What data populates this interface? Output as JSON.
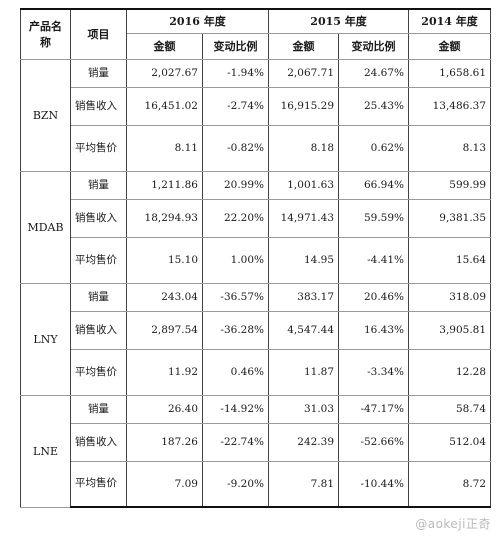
{
  "header": {
    "product": "产品名称",
    "item": "项目",
    "years": [
      "2016 年度",
      "2015 年度",
      "2014 年度"
    ],
    "amount": "金额",
    "ratio": "变动比例"
  },
  "groups": [
    {
      "product": "BZN",
      "rows": [
        {
          "item": "销量",
          "y2016": "2,027.67",
          "r2016": "-1.94%",
          "y2015": "2,067.71",
          "r2015": "24.67%",
          "y2014": "1,658.61"
        },
        {
          "item": "销售收入",
          "y2016": "16,451.02",
          "r2016": "-2.74%",
          "y2015": "16,915.29",
          "r2015": "25.43%",
          "y2014": "13,486.37"
        },
        {
          "item": "平均售价",
          "y2016": "8.11",
          "r2016": "-0.82%",
          "y2015": "8.18",
          "r2015": "0.62%",
          "y2014": "8.13"
        }
      ]
    },
    {
      "product": "MDAB",
      "rows": [
        {
          "item": "销量",
          "y2016": "1,211.86",
          "r2016": "20.99%",
          "y2015": "1,001.63",
          "r2015": "66.94%",
          "y2014": "599.99"
        },
        {
          "item": "销售收入",
          "y2016": "18,294.93",
          "r2016": "22.20%",
          "y2015": "14,971.43",
          "r2015": "59.59%",
          "y2014": "9,381.35"
        },
        {
          "item": "平均售价",
          "y2016": "15.10",
          "r2016": "1.00%",
          "y2015": "14.95",
          "r2015": "-4.41%",
          "y2014": "15.64"
        }
      ]
    },
    {
      "product": "LNY",
      "rows": [
        {
          "item": "销量",
          "y2016": "243.04",
          "r2016": "-36.57%",
          "y2015": "383.17",
          "r2015": "20.46%",
          "y2014": "318.09"
        },
        {
          "item": "销售收入",
          "y2016": "2,897.54",
          "r2016": "-36.28%",
          "y2015": "4,547.44",
          "r2015": "16.43%",
          "y2014": "3,905.81"
        },
        {
          "item": "平均售价",
          "y2016": "11.92",
          "r2016": "0.46%",
          "y2015": "11.87",
          "r2015": "-3.34%",
          "y2014": "12.28"
        }
      ]
    },
    {
      "product": "LNE",
      "rows": [
        {
          "item": "销量",
          "y2016": "26.40",
          "r2016": "-14.92%",
          "y2015": "31.03",
          "r2015": "-47.17%",
          "y2014": "58.74"
        },
        {
          "item": "销售收入",
          "y2016": "187.26",
          "r2016": "-22.74%",
          "y2015": "242.39",
          "r2015": "-52.66%",
          "y2014": "512.04"
        },
        {
          "item": "平均售价",
          "y2016": "7.09",
          "r2016": "-9.20%",
          "y2015": "7.81",
          "r2015": "-10.44%",
          "y2014": "8.72"
        }
      ]
    }
  ],
  "watermark": "@aokeji正奇"
}
